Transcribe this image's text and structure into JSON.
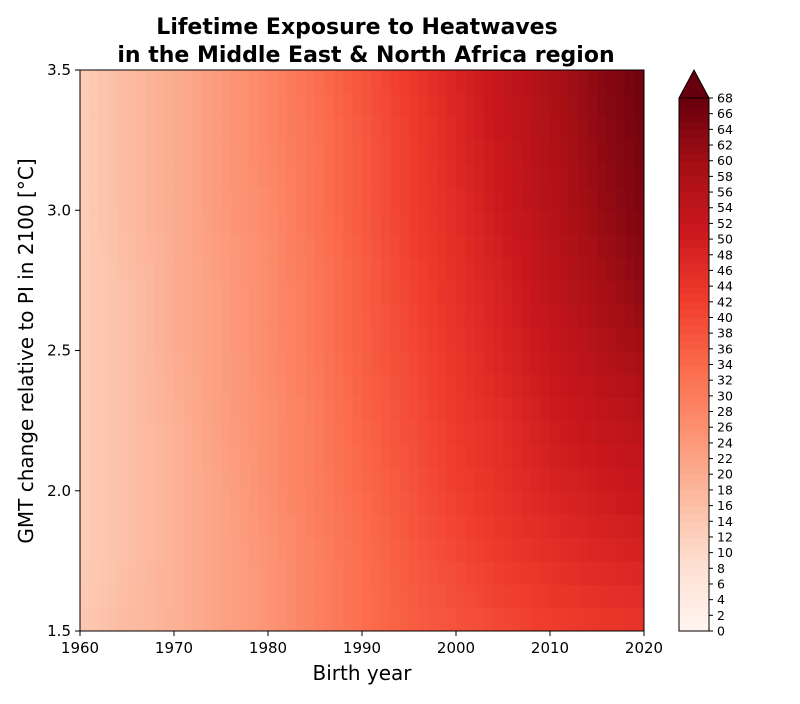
{
  "chart_data": {
    "type": "heatmap",
    "title_line1": "Lifetime Exposure to Heatwaves",
    "title_line2": "in the Middle East & North Africa region",
    "xlabel": "Birth year",
    "ylabel": "GMT change relative to PI in 2100 [°C]",
    "xlim": [
      1960,
      2020
    ],
    "ylim": [
      1.5,
      3.5
    ],
    "x_ticks": [
      1960,
      1970,
      1980,
      1990,
      2000,
      2010,
      2020
    ],
    "y_ticks": [
      1.5,
      2.0,
      2.5,
      3.0,
      3.5
    ],
    "y_tick_labels": [
      "1.5",
      "2.0",
      "2.5",
      "3.0",
      "3.5"
    ],
    "colorbar": {
      "colormap": "Reds",
      "min": 0,
      "max": 68,
      "ticks": [
        0,
        2,
        4,
        6,
        8,
        10,
        12,
        14,
        16,
        18,
        20,
        22,
        24,
        26,
        28,
        30,
        32,
        34,
        36,
        38,
        40,
        42,
        44,
        46,
        48,
        50,
        52,
        54,
        56,
        58,
        60,
        62,
        64,
        66,
        68
      ],
      "extend": "max"
    },
    "x": [
      1960,
      1965,
      1970,
      1975,
      1980,
      1985,
      1990,
      1995,
      2000,
      2005,
      2010,
      2015,
      2020
    ],
    "y": [
      1.5,
      1.75,
      2.0,
      2.25,
      2.5,
      2.75,
      3.0,
      3.25,
      3.5
    ],
    "z": [
      [
        14,
        17,
        19,
        22,
        25,
        29,
        33,
        36,
        38,
        40,
        42,
        43,
        44
      ],
      [
        13,
        16,
        19,
        22,
        25,
        29,
        33,
        37,
        40,
        43,
        45,
        47,
        48
      ],
      [
        13,
        16,
        19,
        22,
        26,
        30,
        34,
        38,
        42,
        45,
        48,
        50,
        52
      ],
      [
        13,
        16,
        19,
        23,
        26,
        30,
        35,
        39,
        43,
        46,
        50,
        53,
        55
      ],
      [
        13,
        16,
        20,
        23,
        27,
        31,
        36,
        40,
        44,
        48,
        52,
        56,
        60
      ],
      [
        13,
        16,
        20,
        23,
        27,
        31,
        36,
        41,
        45,
        49,
        54,
        59,
        63
      ],
      [
        13,
        17,
        20,
        24,
        27,
        32,
        37,
        42,
        46,
        51,
        56,
        61,
        65
      ],
      [
        13,
        17,
        20,
        24,
        28,
        32,
        37,
        42,
        47,
        52,
        57,
        62,
        66
      ],
      [
        13,
        17,
        20,
        24,
        28,
        33,
        38,
        43,
        48,
        53,
        58,
        63,
        67
      ]
    ],
    "colormap_stops": [
      "#fff5f0",
      "#fee0d2",
      "#fcbba1",
      "#fc9272",
      "#fb6a4a",
      "#ef3b2c",
      "#cb181d",
      "#a50f15",
      "#67000d"
    ]
  }
}
